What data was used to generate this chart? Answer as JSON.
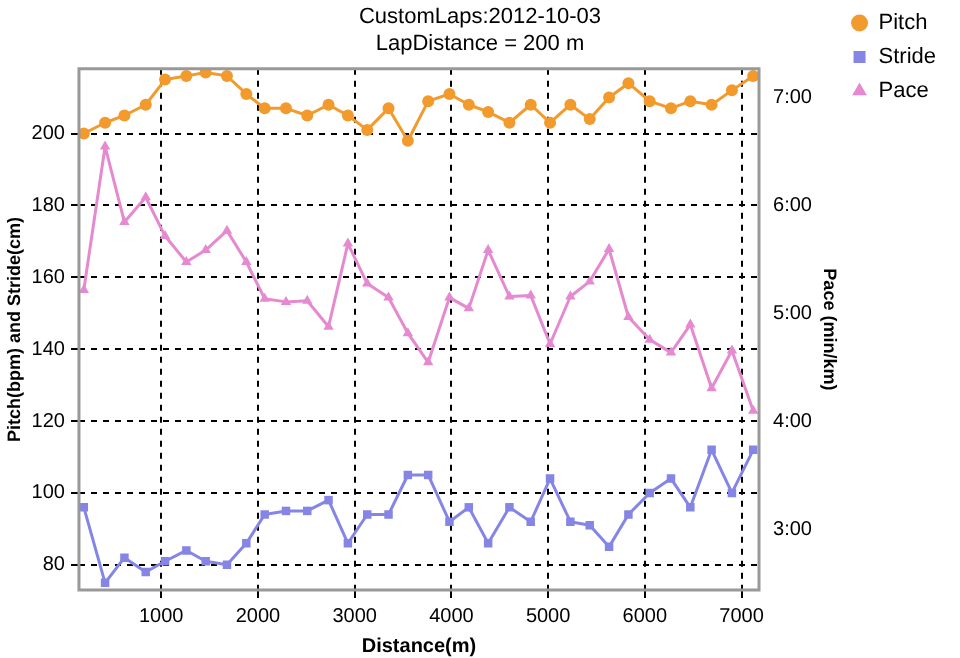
{
  "chart_data": {
    "type": "line",
    "title": "CustomLaps:2012-10-03",
    "subtitle": "LapDistance = 200 m",
    "xlabel": "Distance(m)",
    "ylabel": "Pitch(bpm) and Stride(cm)",
    "y2label": "Pace (min/km)",
    "x": [
      200,
      420,
      620,
      840,
      1040,
      1260,
      1460,
      1680,
      1880,
      2070,
      2290,
      2510,
      2730,
      2930,
      3130,
      3350,
      3550,
      3760,
      3980,
      4180,
      4380,
      4600,
      4820,
      5020,
      5230,
      5430,
      5630,
      5830,
      6050,
      6270,
      6470,
      6690,
      6900,
      7120
    ],
    "series": [
      {
        "name": "Pitch",
        "color": "#f39a2c",
        "marker": "circle",
        "values": [
          200,
          203,
          205,
          208,
          215,
          216,
          217,
          216,
          211,
          207,
          207,
          205,
          208,
          205,
          201,
          207,
          198,
          209,
          211,
          208,
          206,
          203,
          208,
          203,
          208,
          204,
          210,
          214,
          209,
          207,
          209,
          208,
          212,
          216
        ]
      },
      {
        "name": "Stride",
        "color": "#8585e6",
        "marker": "square",
        "values": [
          96,
          75,
          82,
          78,
          81,
          84,
          81,
          80,
          86,
          94,
          95,
          95,
          98,
          86,
          94,
          94,
          105,
          105,
          92,
          96,
          86,
          96,
          92,
          104,
          92,
          91,
          85,
          94,
          100,
          104,
          96,
          112,
          100,
          112
        ]
      },
      {
        "name": "Pace",
        "color": "#e58ad0",
        "marker": "triangle",
        "axis": "y2",
        "values": [
          5.22,
          6.55,
          5.85,
          6.08,
          5.72,
          5.48,
          5.59,
          5.77,
          5.48,
          5.14,
          5.11,
          5.12,
          4.88,
          5.65,
          5.28,
          5.15,
          4.82,
          4.55,
          5.15,
          5.05,
          5.59,
          5.16,
          5.17,
          4.72,
          5.16,
          5.3,
          5.6,
          4.97,
          4.76,
          4.64,
          4.9,
          4.31,
          4.66,
          4.1
        ]
      }
    ],
    "xlim": [
      150,
      7180
    ],
    "xticks": [
      1000,
      2000,
      3000,
      4000,
      5000,
      6000,
      7000
    ],
    "ylim": [
      73,
      218
    ],
    "yticks": [
      80,
      100,
      120,
      140,
      160,
      180,
      200
    ],
    "y2lim": [
      2.44,
      7.27
    ],
    "y2ticks": [
      {
        "value": 3,
        "label": "3:00"
      },
      {
        "value": 4,
        "label": "4:00"
      },
      {
        "value": 5,
        "label": "5:00"
      },
      {
        "value": 6,
        "label": "6:00"
      },
      {
        "value": 7,
        "label": "7:00"
      }
    ],
    "grid": true,
    "legend": "right",
    "line_style": "solid"
  }
}
